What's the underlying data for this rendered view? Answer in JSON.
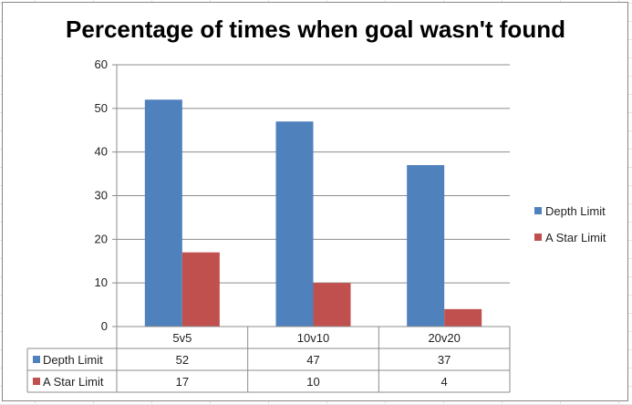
{
  "chart_data": {
    "type": "bar",
    "title": "Percentage of times when goal wasn't found",
    "categories": [
      "5v5",
      "10v10",
      "20v20"
    ],
    "series": [
      {
        "name": "Depth Limit",
        "values": [
          52,
          47,
          37
        ],
        "color": "#4f81bd"
      },
      {
        "name": "A Star Limit",
        "values": [
          17,
          10,
          4
        ],
        "color": "#c0504d"
      }
    ],
    "ylim": [
      0,
      60
    ],
    "yticks": [
      0,
      10,
      20,
      30,
      40,
      50,
      60
    ],
    "grid": true,
    "legend": "right",
    "data_table": true
  }
}
